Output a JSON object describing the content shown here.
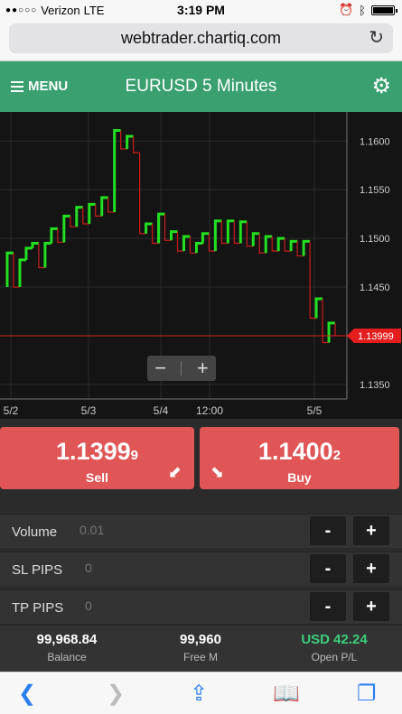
{
  "status": {
    "carrier": "Verizon",
    "network": "LTE",
    "time": "3:19 PM"
  },
  "browser": {
    "url": "webtrader.chartiq.com"
  },
  "header": {
    "menu_label": "MENU",
    "title": "EURUSD 5 Minutes"
  },
  "chart_data": {
    "type": "step",
    "title": "EURUSD 5 Minutes",
    "ylim": [
      1.1335,
      1.163
    ],
    "y_ticks": [
      "1.1600",
      "1.1550",
      "1.1500",
      "1.1450",
      "1.1350"
    ],
    "y_tick_values": [
      1.16,
      1.155,
      1.15,
      1.145,
      1.135
    ],
    "x_ticks": [
      "5/2",
      "5/3",
      "5/4",
      "12:00",
      "5/5"
    ],
    "current_price_label": "1.13999",
    "current_price": 1.13999,
    "series": [
      {
        "name": "",
        "values": [
          1.145,
          1.1485,
          1.145,
          1.1478,
          1.149,
          1.1495,
          1.147,
          1.1495,
          1.151,
          1.1496,
          1.1523,
          1.1512,
          1.1532,
          1.1515,
          1.1535,
          1.1523,
          1.1542,
          1.1527,
          1.1611,
          1.1592,
          1.1605,
          1.1588,
          1.1505,
          1.1515,
          1.1495,
          1.1525,
          1.1498,
          1.1507,
          1.1487,
          1.1502,
          1.1485,
          1.1495,
          1.1505,
          1.1487,
          1.1518,
          1.1495,
          1.1518,
          1.1495,
          1.1517,
          1.1492,
          1.1505,
          1.1485,
          1.1502,
          1.1487,
          1.15,
          1.1487,
          1.1497,
          1.1482,
          1.1497,
          1.1418,
          1.1438,
          1.1393,
          1.1413,
          1.14
        ]
      }
    ]
  },
  "zoom": {
    "minus": "−",
    "plus": "+"
  },
  "trade": {
    "sell": {
      "main": "1.1399",
      "pip": "9",
      "label": "Sell"
    },
    "buy": {
      "main": "1.1400",
      "pip": "2",
      "label": "Buy"
    }
  },
  "fields": [
    {
      "label": "Volume",
      "placeholder": "0.01"
    },
    {
      "label": "SL PIPS",
      "placeholder": "0"
    },
    {
      "label": "TP PIPS",
      "placeholder": "0"
    }
  ],
  "footer": {
    "balance_value": "99,968.84",
    "balance_label": "Balance",
    "free_value": "99,960",
    "free_label": "Free M",
    "pl_value": "USD 42.24",
    "pl_label": "Open P/L"
  },
  "colors": {
    "up": "#22e01f",
    "down": "#cc1b1b",
    "green_bar": "#3aa070",
    "profit": "#3ad07a"
  }
}
